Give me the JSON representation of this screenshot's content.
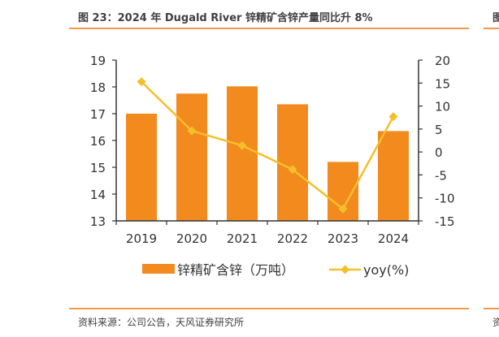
{
  "header": {
    "title": "图 23：2024 年 Dugald River 锌精矿含锌产量同比升 8%",
    "next_title_fragment": "图"
  },
  "footer": {
    "source": "资料来源：公司公告，天风证券研究所",
    "next_source_fragment": "资"
  },
  "colors": {
    "bar": "#f28a1e",
    "line": "#f5bf2a",
    "axis": "#333333",
    "rule": "#f2994a"
  },
  "chart_data": {
    "type": "bar",
    "categories": [
      "2019",
      "2020",
      "2021",
      "2022",
      "2023",
      "2024"
    ],
    "series": [
      {
        "name": "锌精矿含锌（万吨）",
        "type": "bar",
        "axis": "left",
        "values": [
          17.0,
          17.75,
          18.02,
          17.35,
          15.2,
          16.35
        ]
      },
      {
        "name": "yoy(%)",
        "type": "line",
        "axis": "right",
        "values": [
          15.3,
          4.6,
          1.4,
          -3.8,
          -12.4,
          7.7
        ]
      }
    ],
    "y_left": {
      "min": 13,
      "max": 19,
      "ticks": [
        "13",
        "14",
        "15",
        "16",
        "17",
        "18",
        "19"
      ]
    },
    "y_right": {
      "min": -15,
      "max": 20,
      "ticks": [
        "-15",
        "-10",
        "-5",
        "0",
        "5",
        "10",
        "15",
        "20"
      ]
    },
    "grid": false,
    "legend": "bottom"
  }
}
